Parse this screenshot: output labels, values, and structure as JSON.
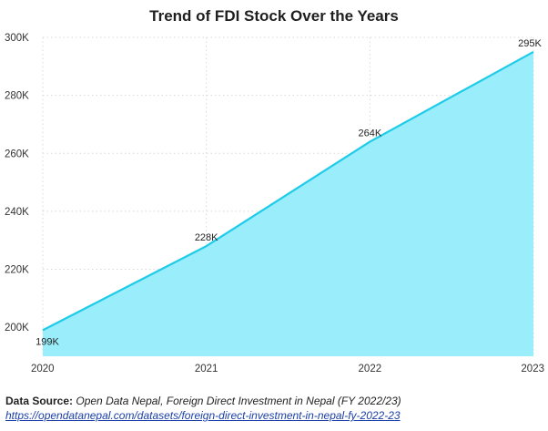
{
  "chart_data": {
    "type": "area",
    "title": "Trend of FDI Stock Over the Years",
    "xlabel": "",
    "ylabel": "",
    "x": [
      "2020",
      "2021",
      "2022",
      "2023"
    ],
    "series": [
      {
        "values": [
          199000,
          228000,
          264000,
          295000
        ],
        "data_labels": [
          "199K",
          "228K",
          "264K",
          "295K"
        ]
      }
    ],
    "ylim": [
      190000,
      300000
    ],
    "yticks": [
      200000,
      220000,
      240000,
      260000,
      280000,
      300000
    ],
    "ytick_labels": [
      "200K",
      "220K",
      "240K",
      "260K",
      "280K",
      "300K"
    ],
    "grid": true,
    "legend": "none",
    "colors": {
      "line": "#1ecbe8",
      "fill": "#9aeefc",
      "grid": "#d9d9d9"
    }
  },
  "footer": {
    "source_label": "Data Source:",
    "source_text": "Open Data Nepal, Foreign Direct Investment in Nepal (FY 2022/23)",
    "source_url": "https://opendatanepal.com/datasets/foreign-direct-investment-in-nepal-fy-2022-23"
  }
}
